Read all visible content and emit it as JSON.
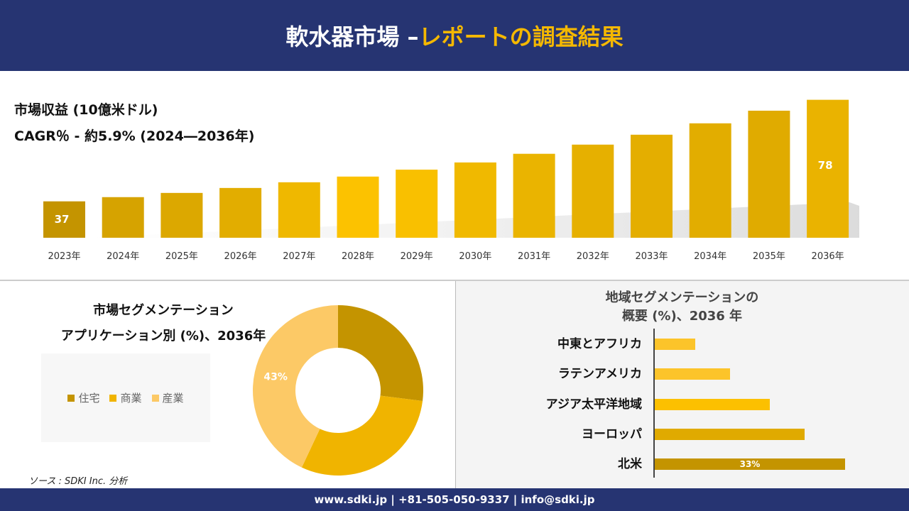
{
  "header": {
    "title_main": "軟水器市場 –",
    "title_accent": "レポートの調査結果"
  },
  "revenue_label": "市場収益 (10億米ドル)",
  "cagr_label": "CAGR％ - 約5.9% (2024―2036年)",
  "chart_data": [
    {
      "type": "bar",
      "categories": [
        "2023年",
        "2024年",
        "2025年",
        "2026年",
        "2027年",
        "2028年",
        "2029年",
        "2030年",
        "2031年",
        "2032年",
        "2033年",
        "2034年",
        "2035年",
        "2036年"
      ],
      "values": [
        37,
        38.7,
        40.4,
        42.4,
        44.7,
        47,
        49.8,
        52.7,
        56.2,
        59.9,
        63.9,
        68.5,
        73.6,
        78
      ],
      "data_labels": {
        "0": "37",
        "13": "78"
      },
      "ylim": [
        22.3,
        80
      ],
      "grid": false,
      "colors": [
        "#c49400",
        "#d6a300",
        "#dca800",
        "#e2ad00",
        "#efb800",
        "#fcc200",
        "#f9c000",
        "#f0b900",
        "#eab400",
        "#e6b000",
        "#e4ae00",
        "#e2ad00",
        "#e0ab00",
        "#eab300"
      ]
    },
    {
      "type": "pie",
      "title": "市場セグメンテーション\nアプリケーション別 (%)、2036年",
      "title_line1": "市場セグメンテーション",
      "title_line2": "アプリケーション別 (%)、2036年",
      "categories": [
        "住宅",
        "商業",
        "産業"
      ],
      "values": [
        27,
        30,
        43
      ],
      "data_labels": {
        "2": "43%"
      },
      "colors": [
        "#c49400",
        "#f0b400",
        "#fcc966"
      ],
      "legend": "left"
    },
    {
      "type": "bar",
      "orientation": "horizontal",
      "title_line1": "地域セグメンテーションの",
      "title_line2": "概要 (%)、2036 年",
      "categories": [
        "中東とアフリカ",
        "ラテンアメリカ",
        "アジア太平洋地域",
        "ヨーロッパ",
        "北米"
      ],
      "values": [
        7,
        13,
        20,
        26,
        33
      ],
      "data_labels": {
        "4": "33%"
      },
      "colors": [
        "#fcc42a",
        "#fcc42a",
        "#fcc000",
        "#e0aa00",
        "#c49400"
      ]
    }
  ],
  "source": "ソース : SDKI Inc. 分析",
  "footer": "www.sdki.jp | +81-505-050-9337 | info@sdki.jp"
}
